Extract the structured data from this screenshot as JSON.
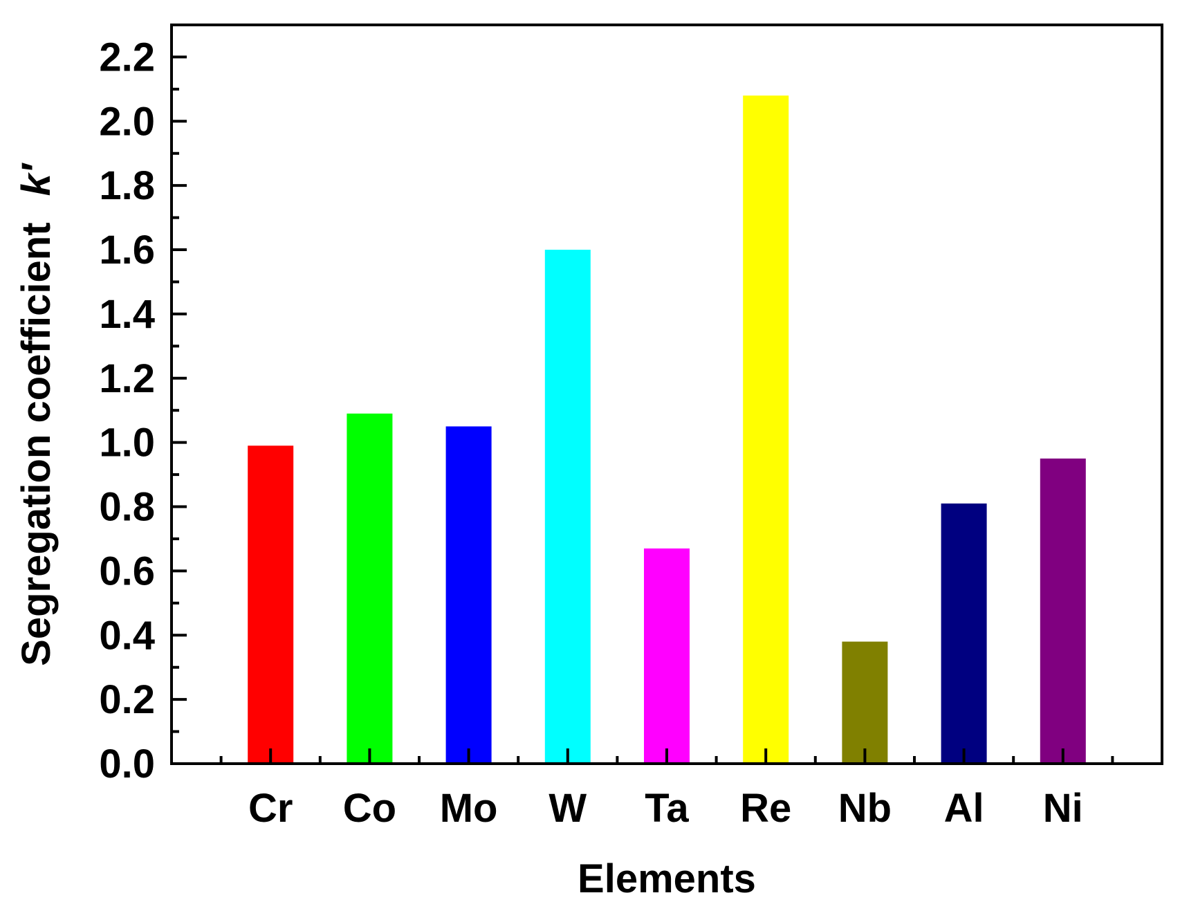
{
  "chart_data": {
    "type": "bar",
    "xlabel": "Elements",
    "ylabel": "Segregation coefficient",
    "ylabel_symbol": "k′",
    "categories": [
      "Cr",
      "Co",
      "Mo",
      "W",
      "Ta",
      "Re",
      "Nb",
      "Al",
      "Ni"
    ],
    "values": [
      0.99,
      1.09,
      1.05,
      1.6,
      0.67,
      2.08,
      0.38,
      0.81,
      0.95
    ],
    "colors": [
      "#ff0000",
      "#00ff00",
      "#0000ff",
      "#00ffff",
      "#ff00ff",
      "#ffff00",
      "#808000",
      "#000080",
      "#800080"
    ],
    "ylim": [
      0,
      2.3
    ],
    "yticks": [
      "0.0",
      "0.2",
      "0.4",
      "0.6",
      "0.8",
      "1.0",
      "1.2",
      "1.4",
      "1.6",
      "1.8",
      "2.0",
      "2.2"
    ],
    "grid": false,
    "legend": "none"
  }
}
